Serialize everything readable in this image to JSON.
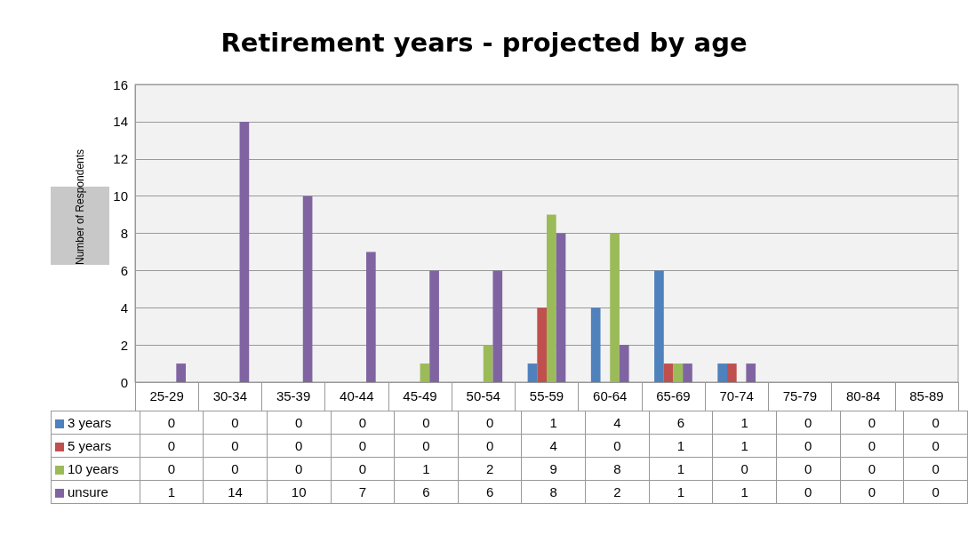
{
  "chart_data": {
    "type": "bar",
    "title": "Retirement years - projected by age",
    "ylabel": "Number of Respondents",
    "categories": [
      "25-29",
      "30-34",
      "35-39",
      "40-44",
      "45-49",
      "50-54",
      "55-59",
      "60-64",
      "65-69",
      "70-74",
      "75-79",
      "80-84",
      "85-89"
    ],
    "series": [
      {
        "name": "3 years",
        "color": "#4f81bd",
        "values": [
          0,
          0,
          0,
          0,
          0,
          0,
          1,
          4,
          6,
          1,
          0,
          0,
          0
        ]
      },
      {
        "name": "5 years",
        "color": "#c0504d",
        "values": [
          0,
          0,
          0,
          0,
          0,
          0,
          4,
          0,
          1,
          1,
          0,
          0,
          0
        ]
      },
      {
        "name": "10 years",
        "color": "#9bbb59",
        "values": [
          0,
          0,
          0,
          0,
          1,
          2,
          9,
          8,
          1,
          0,
          0,
          0,
          0
        ]
      },
      {
        "name": "unsure",
        "color": "#8064a2",
        "values": [
          1,
          14,
          10,
          7,
          6,
          6,
          8,
          2,
          1,
          1,
          0,
          0,
          0
        ]
      }
    ],
    "ylim": [
      0,
      16
    ],
    "yticks": [
      0,
      2,
      4,
      6,
      8,
      10,
      12,
      14,
      16
    ],
    "grid": "y",
    "legend": "bottom left",
    "data_labels": true
  }
}
